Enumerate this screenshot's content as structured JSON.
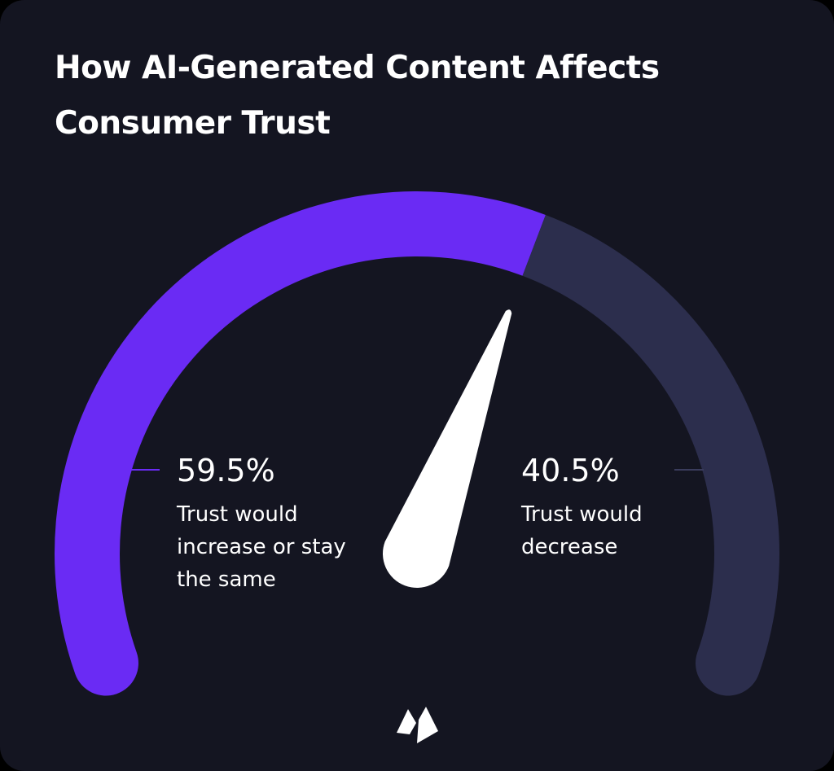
{
  "chart_data": {
    "type": "gauge",
    "title": "How AI-Generated Content Affects Consumer Trust",
    "categories": [
      "Trust would increase or stay the same",
      "Trust would decrease"
    ],
    "values": [
      59.5,
      40.5
    ],
    "value_labels": [
      "59.5%",
      "40.5%"
    ],
    "colors": [
      "#6a2bf4",
      "#2c2e4d"
    ]
  }
}
